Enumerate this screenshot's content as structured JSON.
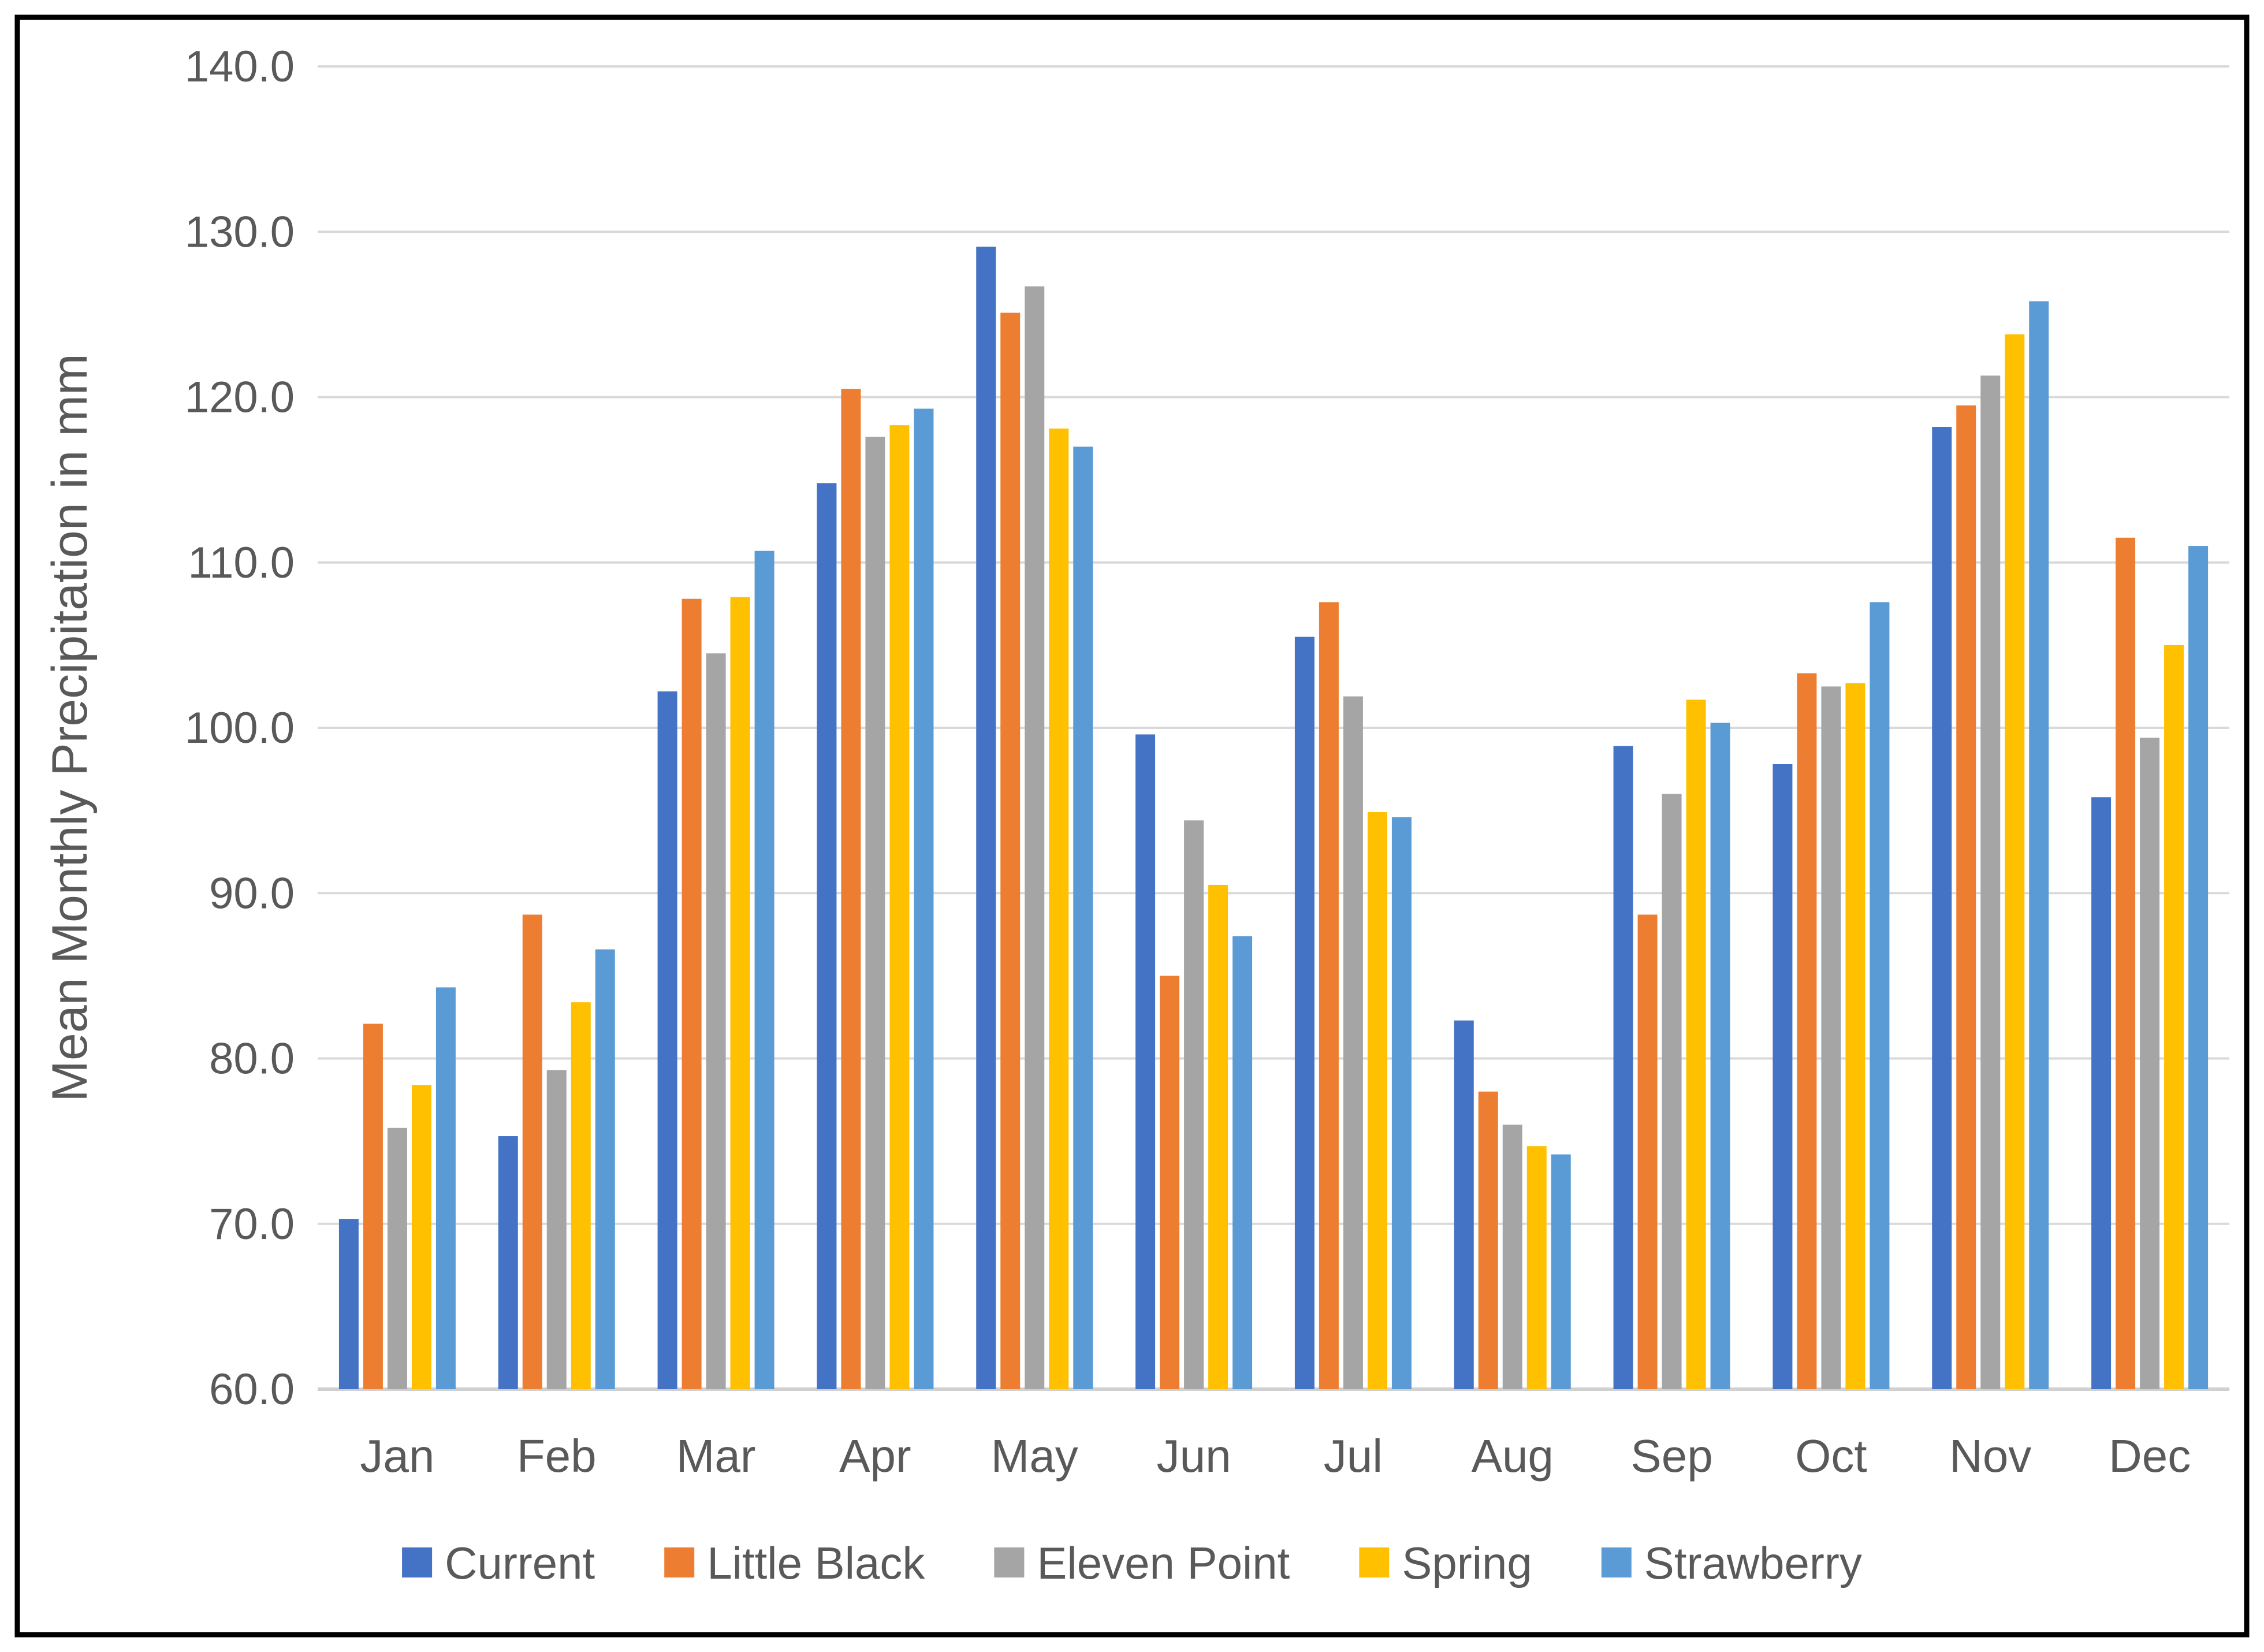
{
  "chart_data": {
    "type": "bar",
    "title": "",
    "xlabel": "",
    "ylabel": "Mean Monthly Precipitation in mm",
    "ylim": [
      60,
      140
    ],
    "ytick_step": 10,
    "ytick_labels": [
      "60.0",
      "70.0",
      "80.0",
      "90.0",
      "100.0",
      "110.0",
      "120.0",
      "130.0",
      "140.0"
    ],
    "grid": true,
    "legend_position": "bottom",
    "categories": [
      "Jan",
      "Feb",
      "Mar",
      "Apr",
      "May",
      "Jun",
      "Jul",
      "Aug",
      "Sep",
      "Oct",
      "Nov",
      "Dec"
    ],
    "series": [
      {
        "name": "Current",
        "color": "#4472C4",
        "values": [
          70.3,
          75.3,
          102.2,
          114.8,
          129.1,
          99.6,
          105.5,
          82.3,
          98.9,
          97.8,
          118.2,
          95.8
        ]
      },
      {
        "name": "Little Black",
        "color": "#ED7D31",
        "values": [
          82.1,
          88.7,
          107.8,
          120.5,
          125.1,
          85.0,
          107.6,
          78.0,
          88.7,
          103.3,
          119.5,
          111.5
        ]
      },
      {
        "name": "Eleven Point",
        "color": "#A5A5A5",
        "values": [
          75.8,
          79.3,
          104.5,
          117.6,
          126.7,
          94.4,
          101.9,
          76.0,
          96.0,
          102.5,
          121.3,
          99.4
        ]
      },
      {
        "name": "Spring",
        "color": "#FFC000",
        "values": [
          78.4,
          83.4,
          107.9,
          118.3,
          118.1,
          90.5,
          94.9,
          74.7,
          101.7,
          102.7,
          123.8,
          105.0
        ]
      },
      {
        "name": "Strawberry",
        "color": "#5B9BD5",
        "values": [
          84.3,
          86.6,
          110.7,
          119.3,
          117.0,
          87.4,
          94.6,
          74.2,
          100.3,
          107.6,
          125.8,
          111.0
        ]
      }
    ],
    "colors": {
      "text": "#595959",
      "gridline": "#D9D9D9",
      "axis_line": "#D0D0D0",
      "frame_border": "#000000",
      "background": "#FFFFFF"
    }
  }
}
